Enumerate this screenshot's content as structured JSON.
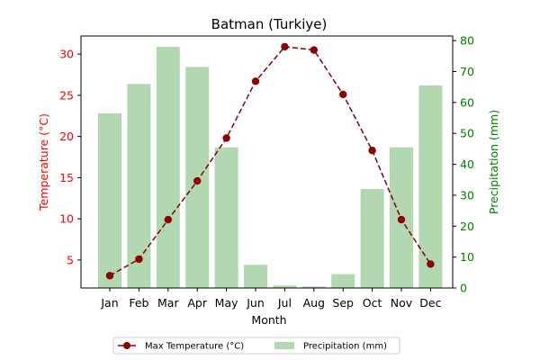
{
  "chart_data": {
    "type": "bar+line",
    "title": "Batman (Turkiye)",
    "xlabel": "Month",
    "categories": [
      "Jan",
      "Feb",
      "Mar",
      "Apr",
      "May",
      "Jun",
      "Jul",
      "Aug",
      "Sep",
      "Oct",
      "Nov",
      "Dec"
    ],
    "left_axis": {
      "label": "Temperature (°C)",
      "color": "#ff0000",
      "ylim": [
        1.6,
        32.2
      ],
      "ticks": [
        5,
        10,
        15,
        20,
        25,
        30
      ]
    },
    "right_axis": {
      "label": "Precipitation (mm)",
      "color": "#008000",
      "ylim": [
        0,
        81.5
      ],
      "ticks": [
        0,
        10,
        20,
        30,
        40,
        50,
        60,
        70,
        80
      ]
    },
    "series": [
      {
        "name": "Max Temperature (°C)",
        "type": "line",
        "axis": "left",
        "color": "#8b0000",
        "values": [
          3.1,
          5.1,
          9.9,
          14.6,
          19.8,
          26.7,
          30.9,
          30.5,
          25.1,
          18.3,
          9.9,
          4.5
        ]
      },
      {
        "name": "Precipitation (mm)",
        "type": "bar",
        "axis": "right",
        "color": "#b2d8b2",
        "values": [
          56.5,
          66,
          78,
          71.5,
          45.5,
          7.5,
          0.8,
          0.5,
          4.5,
          32,
          45.5,
          65.5
        ]
      }
    ],
    "legend_position": "bottom-center",
    "grid": false
  }
}
